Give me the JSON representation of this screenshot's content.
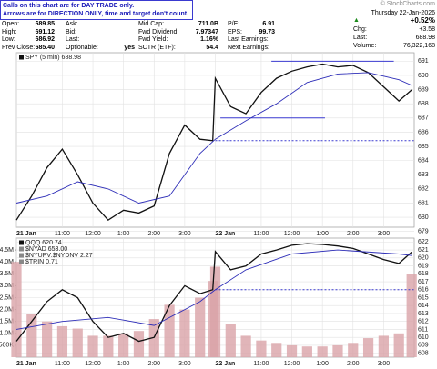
{
  "notice": [
    "Calls on this chart are for DAY TRADE only.",
    "Arrows are for DIRECTION ONLY, time and target don't count."
  ],
  "quote": {
    "rows": [
      [
        "Open:",
        "689.85",
        "Ask:",
        "",
        "Mid Cap:",
        "711.0B",
        "P/E:",
        "6.91"
      ],
      [
        "High:",
        "691.12",
        "Bid:",
        "",
        "Fwd Dividend:",
        "7.97347",
        "EPS:",
        "99.73"
      ],
      [
        "Low:",
        "686.92",
        "Last:",
        "",
        "Fwd Yield:",
        "1.16%",
        "Last Earnings:",
        ""
      ],
      [
        "Prev Close:",
        "685.40",
        "Optionable:",
        "yes",
        "SCTR (ETF):",
        "54.4",
        "Next Earnings:",
        ""
      ]
    ]
  },
  "header_right": {
    "brand": "© StockCharts.com",
    "date": "Thursday 22-Jan-2026",
    "pct": "+0.52%",
    "chg_label": "Chg:",
    "chg": "+3.58",
    "last_label": "Last:",
    "last": "688.98",
    "volume_label": "Volume:",
    "volume": "76,322,168"
  },
  "chart_data": [
    {
      "type": "line",
      "xlim": [
        0,
        156
      ],
      "ylim": [
        679.3,
        691.6
      ],
      "yticks": [
        679,
        680,
        681,
        682,
        683,
        684,
        685,
        686,
        687,
        688,
        689,
        690,
        691
      ],
      "xticks": [
        {
          "value": 0,
          "label": "21 Jan"
        },
        {
          "value": 18,
          "label": "11:00"
        },
        {
          "value": 30,
          "label": "12:00"
        },
        {
          "value": 42,
          "label": "1:00"
        },
        {
          "value": 54,
          "label": "2:00"
        },
        {
          "value": 66,
          "label": "3:00"
        },
        {
          "value": 78,
          "label": "22 Jan"
        },
        {
          "value": 96,
          "label": "11:00"
        },
        {
          "value": 108,
          "label": "12:00"
        },
        {
          "value": 120,
          "label": "1:00"
        },
        {
          "value": 132,
          "label": "2:00"
        },
        {
          "value": 144,
          "label": "3:00"
        }
      ],
      "grid": true,
      "series": [
        {
          "name": "SPY (5 min) 688.98",
          "color": "#111111",
          "x": [
            0,
            6,
            12,
            18,
            24,
            30,
            36,
            42,
            48,
            54,
            60,
            66,
            72,
            77,
            78,
            84,
            90,
            96,
            102,
            108,
            114,
            120,
            126,
            132,
            138,
            144,
            150,
            155
          ],
          "values": [
            679.8,
            681.5,
            683.5,
            684.8,
            683.0,
            681.0,
            679.8,
            680.5,
            680.3,
            680.8,
            684.5,
            686.5,
            685.5,
            685.4,
            689.8,
            687.8,
            687.3,
            688.8,
            689.8,
            690.3,
            690.6,
            690.8,
            690.6,
            690.7,
            690.2,
            689.2,
            688.2,
            688.98
          ]
        },
        {
          "color": "#2e2eb8",
          "x": [
            0,
            12,
            24,
            36,
            48,
            60,
            72,
            78,
            90,
            102,
            114,
            126,
            138,
            150,
            155
          ],
          "values": [
            681.0,
            681.5,
            682.5,
            682.0,
            681.0,
            681.5,
            684.5,
            685.5,
            686.8,
            688.0,
            689.5,
            690.1,
            690.2,
            689.7,
            689.3
          ]
        }
      ],
      "levels": [
        {
          "value": 691,
          "x": [
            100,
            148
          ],
          "dash": false
        },
        {
          "value": 687,
          "x": [
            80,
            121
          ],
          "dash": false
        },
        {
          "value": 685.4,
          "x": [
            78,
            156
          ],
          "dash": true
        }
      ],
      "color_levels": "#3a3ad0"
    },
    {
      "type": "line",
      "xlim": [
        0,
        156
      ],
      "ylim": [
        607.5,
        622.5
      ],
      "yticks": [
        608,
        609,
        610,
        611,
        612,
        613,
        614,
        615,
        616,
        617,
        618,
        619,
        620,
        621,
        622
      ],
      "xticks": [
        {
          "value": 0,
          "label": "21 Jan"
        },
        {
          "value": 18,
          "label": "11:00"
        },
        {
          "value": 30,
          "label": "12:00"
        },
        {
          "value": 42,
          "label": "1:00"
        },
        {
          "value": 54,
          "label": "2:00"
        },
        {
          "value": 66,
          "label": "3:00"
        },
        {
          "value": 78,
          "label": "22 Jan"
        },
        {
          "value": 96,
          "label": "11:00"
        },
        {
          "value": 108,
          "label": "12:00"
        },
        {
          "value": 120,
          "label": "1:00"
        },
        {
          "value": 132,
          "label": "2:00"
        },
        {
          "value": 144,
          "label": "3:00"
        }
      ],
      "grid": true,
      "legend_extra": [
        "$NYAD 653.00",
        "$NYUPV:$NYDNV 2.27",
        "$TRIN 0.71"
      ],
      "series": [
        {
          "name": "QQQ 620.74",
          "color": "#111111",
          "x": [
            0,
            6,
            12,
            18,
            24,
            30,
            36,
            42,
            48,
            54,
            60,
            66,
            72,
            77,
            78,
            84,
            90,
            96,
            102,
            108,
            114,
            120,
            126,
            132,
            138,
            144,
            150,
            155
          ],
          "values": [
            609.5,
            612,
            614.5,
            616,
            615,
            612,
            610,
            610.5,
            609.5,
            610,
            614,
            616.5,
            615.5,
            616,
            620.8,
            618.5,
            619,
            620.5,
            621,
            621.6,
            621.8,
            621.7,
            621.5,
            621.2,
            620.5,
            619.8,
            619.3,
            620.74
          ]
        },
        {
          "color": "#2e2eb8",
          "x": [
            0,
            18,
            36,
            54,
            72,
            78,
            90,
            108,
            126,
            150,
            155
          ],
          "values": [
            611,
            612,
            612.5,
            611.5,
            614.5,
            616,
            618.5,
            620.5,
            621,
            620.5,
            620.3
          ]
        }
      ],
      "levels": [
        {
          "value": 616,
          "x": [
            78,
            156
          ],
          "dash": true
        }
      ],
      "color_levels": "#3a3ad0",
      "volume": {
        "color": "#d9a3a8",
        "ylim": [
          0,
          5000000
        ],
        "yticks": [
          {
            "value": 500000,
            "label": "500K"
          },
          {
            "value": 1000000,
            "label": "1.0M"
          },
          {
            "value": 1500000,
            "label": "1.5M"
          },
          {
            "value": 2000000,
            "label": "2.0M"
          },
          {
            "value": 2500000,
            "label": "2.5M"
          },
          {
            "value": 3000000,
            "label": "3.0M"
          },
          {
            "value": 3500000,
            "label": "3.5M"
          },
          {
            "value": 4000000,
            "label": "4.0M"
          },
          {
            "value": 4500000,
            "label": "4.5M"
          }
        ],
        "x": [
          0,
          6,
          12,
          18,
          24,
          30,
          36,
          42,
          48,
          54,
          60,
          66,
          72,
          77,
          78,
          84,
          90,
          96,
          102,
          108,
          114,
          120,
          126,
          132,
          138,
          144,
          150,
          155
        ],
        "values": [
          4000000,
          1800000,
          1500000,
          1300000,
          1200000,
          900000,
          900000,
          1000000,
          1100000,
          1600000,
          2200000,
          2000000,
          2500000,
          3200000,
          3800000,
          1400000,
          900000,
          700000,
          600000,
          500000,
          450000,
          450000,
          500000,
          600000,
          800000,
          900000,
          1000000,
          3500000
        ]
      }
    }
  ]
}
